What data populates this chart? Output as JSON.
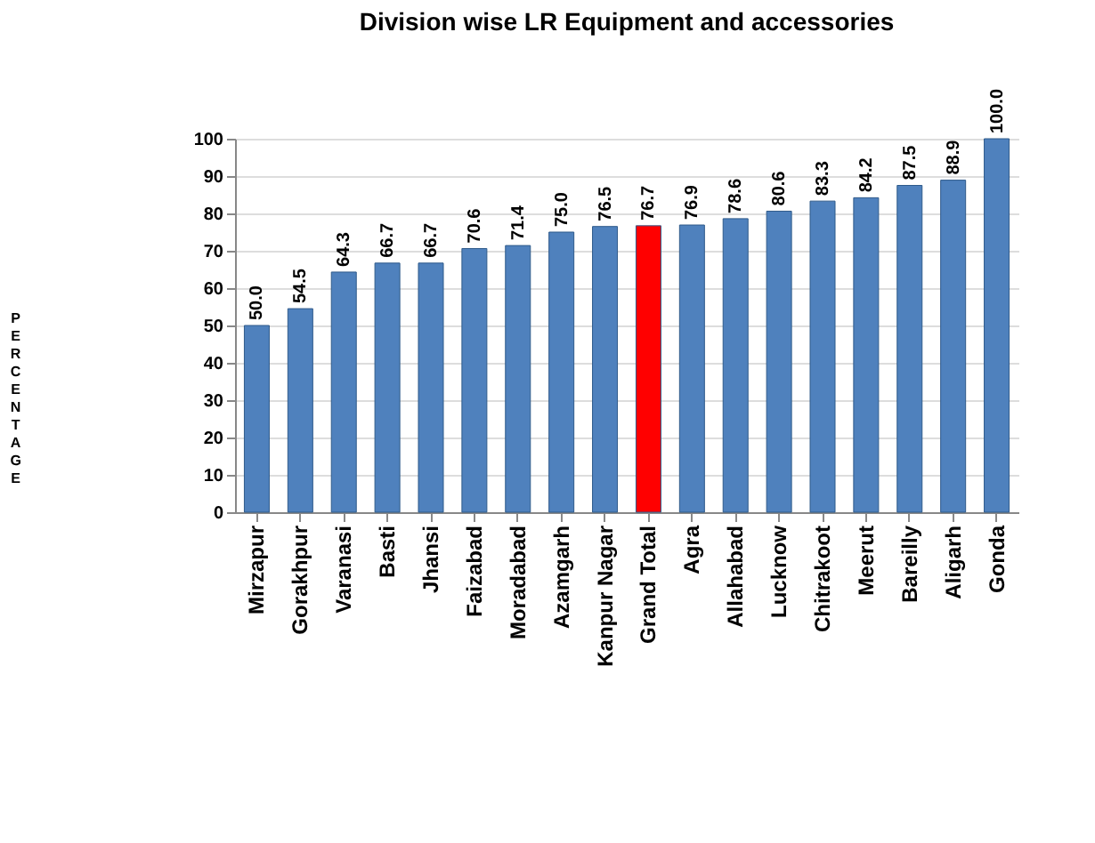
{
  "chart_data": {
    "type": "bar",
    "title": "Division wise LR Equipment and accessories",
    "ylabel": "PERCENTAGE",
    "categories": [
      "Mirzapur",
      "Gorakhpur",
      "Varanasi",
      "Basti",
      "Jhansi",
      "Faizabad",
      "Moradabad",
      "Azamgarh",
      "Kanpur Nagar",
      "Grand Total",
      "Agra",
      "Allahabad",
      "Lucknow",
      "Chitrakoot",
      "Meerut",
      "Bareilly",
      "Aligarh",
      "Gonda"
    ],
    "values": [
      50.0,
      54.5,
      64.3,
      66.7,
      66.7,
      70.6,
      71.4,
      75.0,
      76.5,
      76.7,
      76.9,
      78.6,
      80.6,
      83.3,
      84.2,
      87.5,
      88.9,
      100.0
    ],
    "value_labels": [
      "50.0",
      "54.5",
      "64.3",
      "66.7",
      "66.7",
      "70.6",
      "71.4",
      "75.0",
      "76.5",
      "76.7",
      "76.9",
      "78.6",
      "80.6",
      "83.3",
      "84.2",
      "87.5",
      "88.9",
      "100.0"
    ],
    "colors": [
      "#4f81bd",
      "#4f81bd",
      "#4f81bd",
      "#4f81bd",
      "#4f81bd",
      "#4f81bd",
      "#4f81bd",
      "#4f81bd",
      "#4f81bd",
      "#ff0000",
      "#4f81bd",
      "#4f81bd",
      "#4f81bd",
      "#4f81bd",
      "#4f81bd",
      "#4f81bd",
      "#4f81bd",
      "#4f81bd"
    ],
    "ylim": [
      0,
      100
    ],
    "yticks": [
      0,
      10,
      20,
      30,
      40,
      50,
      60,
      70,
      80,
      90,
      100
    ],
    "grid": "y"
  }
}
